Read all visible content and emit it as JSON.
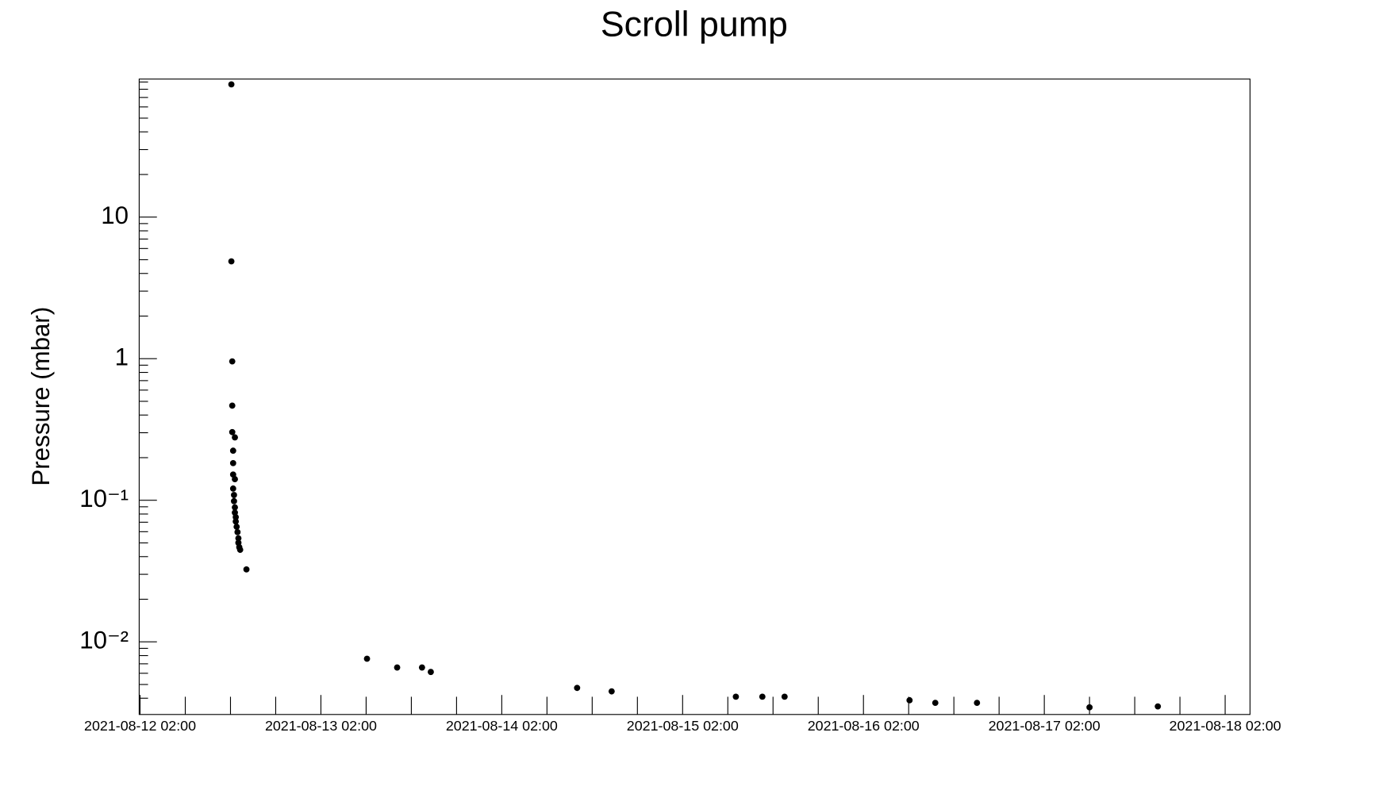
{
  "chart_data": {
    "type": "scatter",
    "title": "Scroll pump",
    "y_label": "Pressure (mbar)",
    "log_y": true,
    "color": "#000000",
    "xlim": [
      "2021-08-12 01:53",
      "2021-08-18 05:18"
    ],
    "xticks": [
      "2021-08-12 02:00",
      "2021-08-13 02:00",
      "2021-08-14 02:00",
      "2021-08-15 02:00",
      "2021-08-16 02:00",
      "2021-08-17 02:00",
      "2021-08-18 02:00"
    ],
    "xminor": [
      "2021-08-12 08:00",
      "2021-08-12 14:00",
      "2021-08-12 20:00",
      "2021-08-13 08:00",
      "2021-08-13 14:00",
      "2021-08-13 20:00",
      "2021-08-14 08:00",
      "2021-08-14 14:00",
      "2021-08-14 20:00",
      "2021-08-15 08:00",
      "2021-08-15 14:00",
      "2021-08-15 20:00",
      "2021-08-16 08:00",
      "2021-08-16 14:00",
      "2021-08-16 20:00",
      "2021-08-17 08:00",
      "2021-08-17 14:00",
      "2021-08-17 20:00"
    ],
    "ylim": [
      0.00307,
      94.4
    ],
    "yticks": [
      {
        "value": 0.01,
        "label": "10⁻²"
      },
      {
        "value": 0.1,
        "label": "10⁻¹"
      },
      1,
      10
    ],
    "yminor": [
      0.004,
      0.005,
      0.006,
      0.007,
      0.008,
      0.009,
      0.02,
      0.03,
      0.04,
      0.05,
      0.06,
      0.07,
      0.08,
      0.09,
      0.2,
      0.3,
      0.4,
      0.5,
      0.6,
      0.7,
      0.8,
      0.9,
      2,
      3,
      4,
      5,
      6,
      7,
      8,
      9,
      20,
      30,
      40,
      50,
      60,
      70,
      80,
      90
    ],
    "x": [
      "2021-08-12 14:07",
      "2021-08-12 14:07",
      "2021-08-12 14:14",
      "2021-08-12 14:14",
      "2021-08-12 14:14",
      "2021-08-12 14:35",
      "2021-08-12 14:21",
      "2021-08-12 14:21",
      "2021-08-12 14:21",
      "2021-08-12 14:35",
      "2021-08-12 14:21",
      "2021-08-12 14:28",
      "2021-08-12 14:28",
      "2021-08-12 14:35",
      "2021-08-12 14:35",
      "2021-08-12 14:42",
      "2021-08-12 14:42",
      "2021-08-12 14:49",
      "2021-08-12 14:56",
      "2021-08-12 15:03",
      "2021-08-12 15:03",
      "2021-08-12 15:10",
      "2021-08-12 15:17",
      "2021-08-12 16:07",
      "2021-08-13 08:07",
      "2021-08-13 12:07",
      "2021-08-13 15:25",
      "2021-08-13 16:35",
      "2021-08-14 12:00",
      "2021-08-14 16:35",
      "2021-08-15 09:04",
      "2021-08-15 12:35",
      "2021-08-15 15:32",
      "2021-08-16 08:07",
      "2021-08-16 11:32",
      "2021-08-16 17:04",
      "2021-08-17 08:00",
      "2021-08-17 17:04"
    ],
    "values": [
      86.6,
      4.87,
      0.957,
      0.466,
      0.303,
      0.278,
      0.224,
      0.183,
      0.152,
      0.141,
      0.121,
      0.109,
      0.0986,
      0.0891,
      0.0818,
      0.076,
      0.0708,
      0.065,
      0.0596,
      0.0539,
      0.0501,
      0.0466,
      0.0447,
      0.0325,
      0.0076,
      0.00659,
      0.00659,
      0.00613,
      0.00473,
      0.00447,
      0.0041,
      0.0041,
      0.0041,
      0.00387,
      0.00371,
      0.00371,
      0.00345,
      0.0035
    ]
  }
}
